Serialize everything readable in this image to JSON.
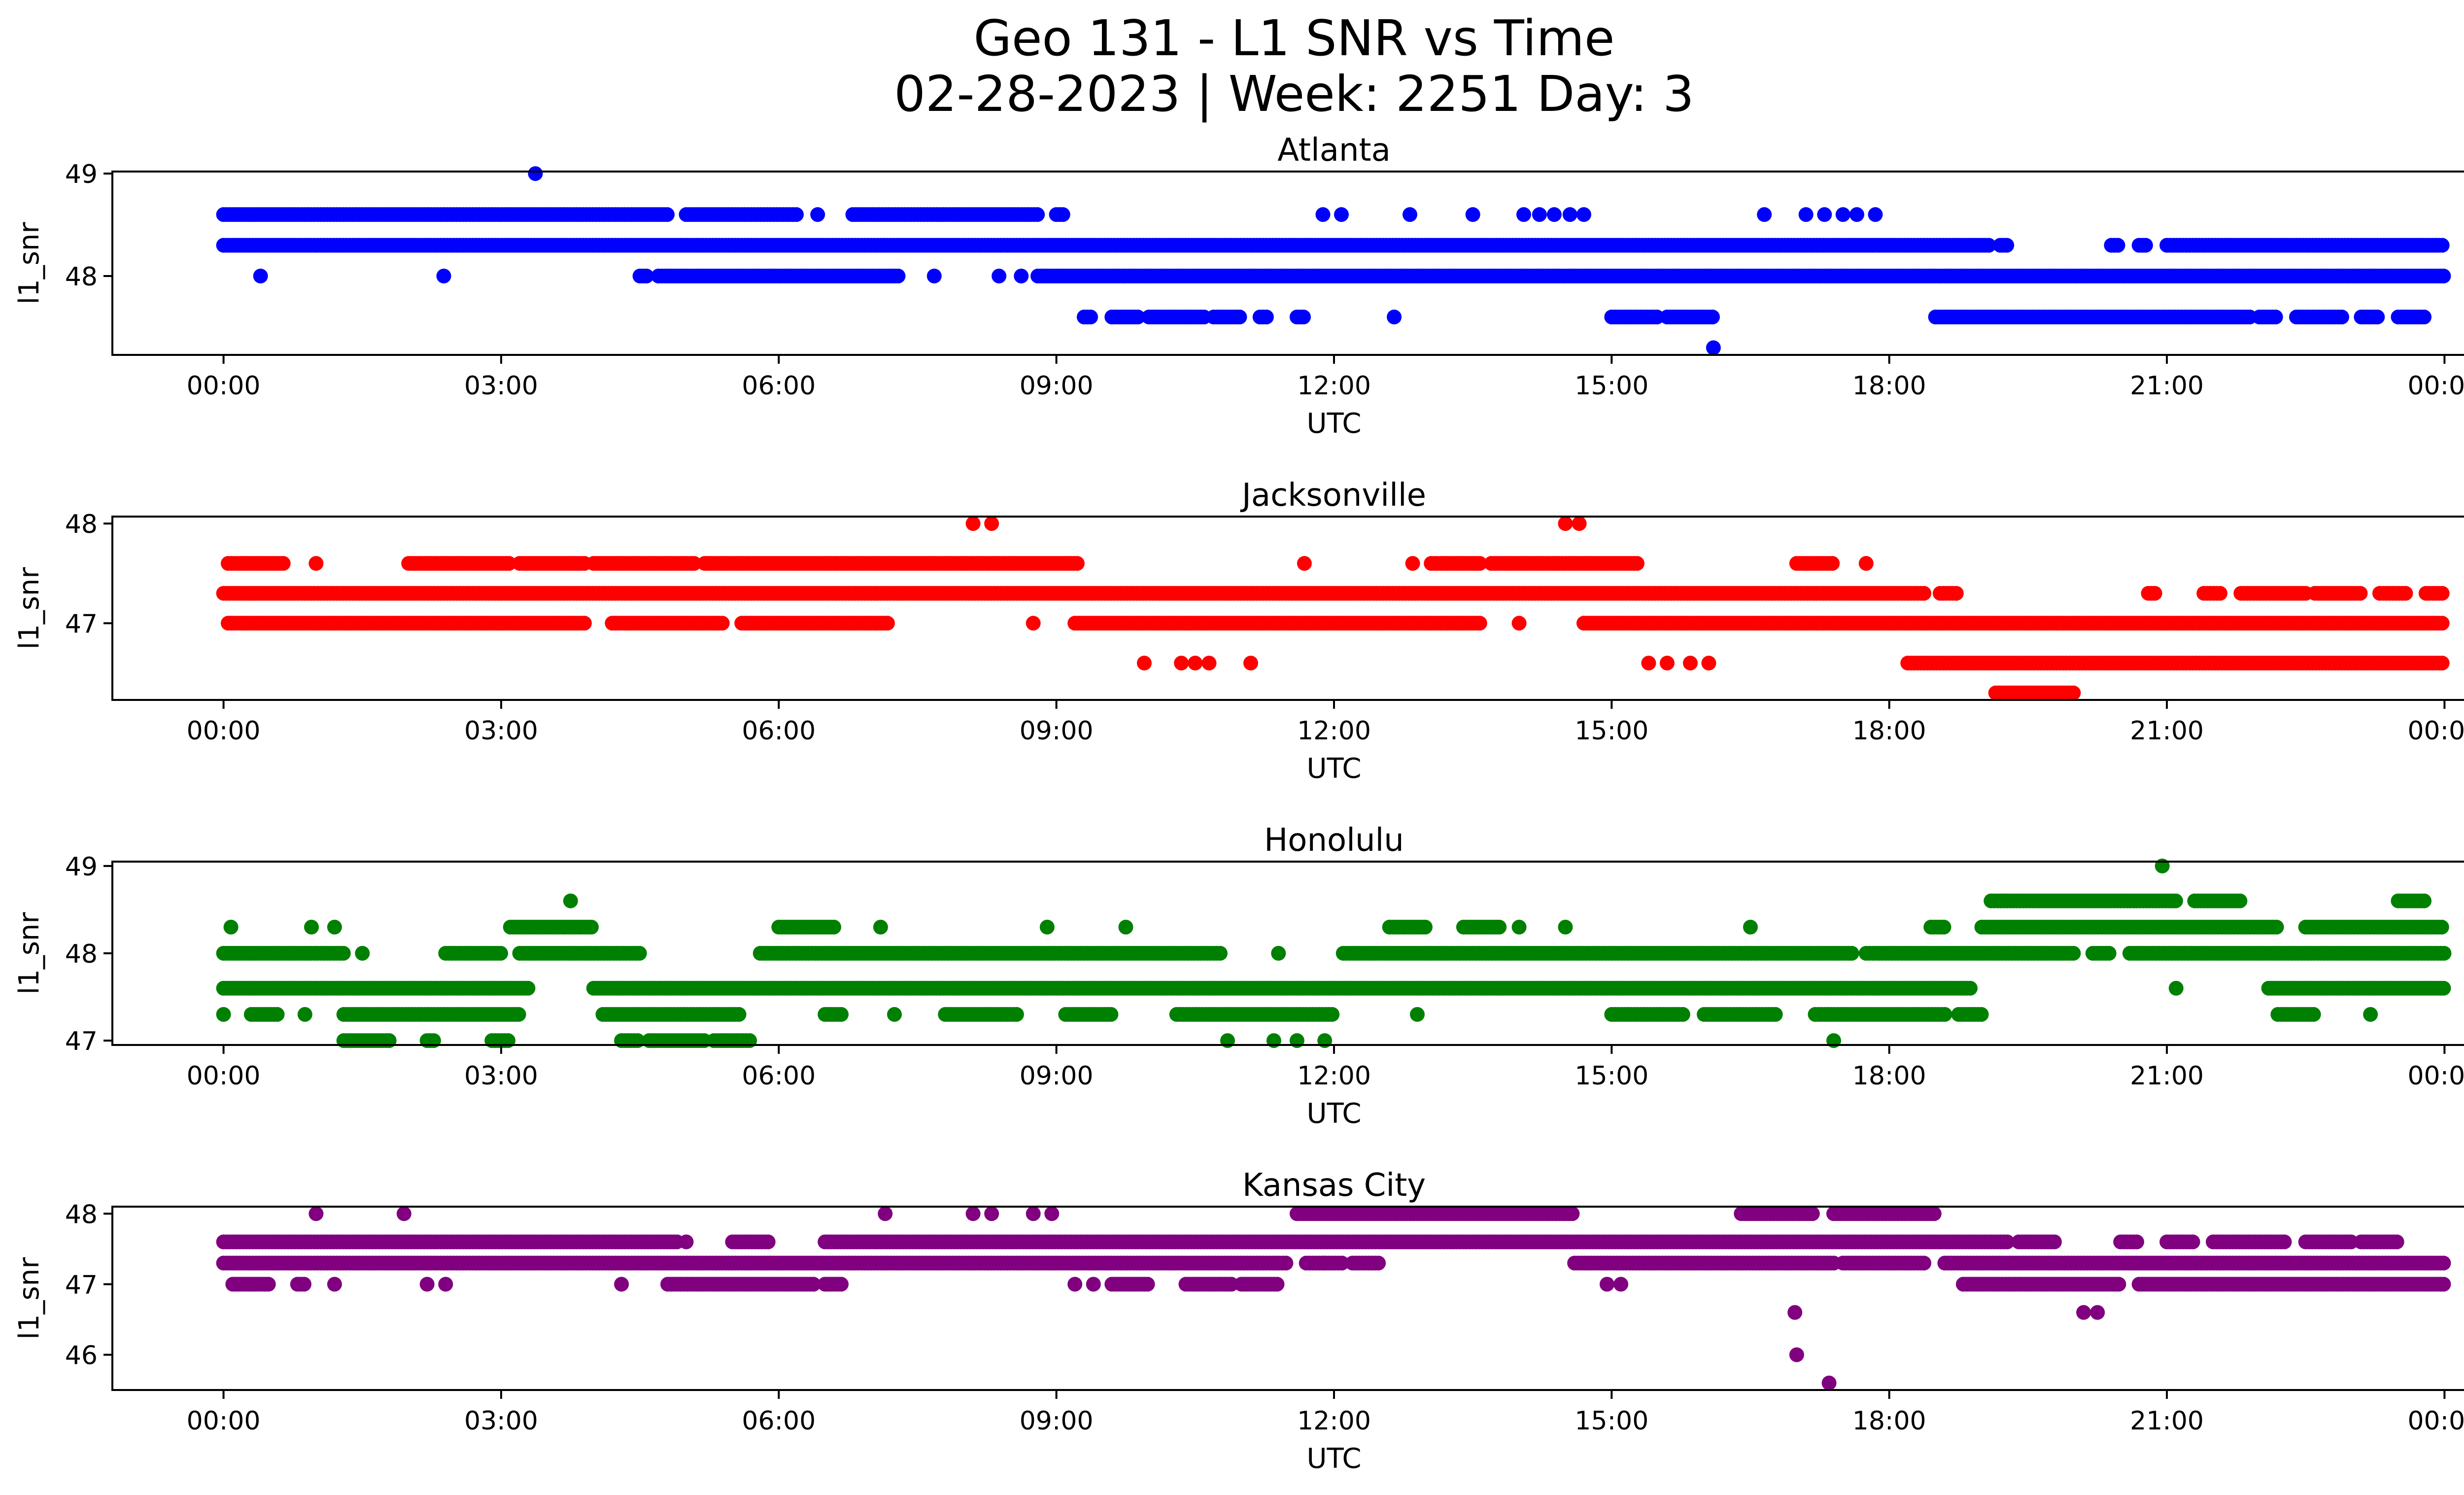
{
  "title_line1": "Geo 131 - L1 SNR vs Time",
  "title_line2": "02-28-2023 | Week: 2251 Day: 3",
  "chart_data": [
    {
      "type": "scatter",
      "title": "Atlanta",
      "color": "#0000ff",
      "xlabel": "UTC",
      "ylabel": "l1_snr",
      "xlim": [
        0,
        24
      ],
      "ylim": [
        47.23,
        49.02
      ],
      "xticks": [
        "00:00",
        "03:00",
        "06:00",
        "09:00",
        "12:00",
        "15:00",
        "18:00",
        "21:00",
        "00:00"
      ],
      "yticks": [
        "48",
        "49"
      ],
      "ytick_values": [
        48,
        49
      ],
      "bands": [
        {
          "y": 48.6,
          "segments": [
            [
              0,
              4.8
            ],
            [
              5.0,
              6.2
            ],
            [
              6.8,
              8.8
            ],
            [
              9.0,
              9.1
            ]
          ]
        },
        {
          "y": 48.3,
          "segments": [
            [
              0,
              19.1
            ],
            [
              19.2,
              19.3
            ],
            [
              20.4,
              20.5
            ],
            [
              20.7,
              20.8
            ],
            [
              21.0,
              24
            ]
          ]
        },
        {
          "y": 48.0,
          "segments": [
            [
              4.5,
              4.6
            ],
            [
              4.7,
              7.3
            ],
            [
              8.8,
              24
            ]
          ]
        },
        {
          "y": 47.6,
          "segments": [
            [
              9.3,
              9.4
            ],
            [
              9.6,
              9.9
            ],
            [
              10.0,
              10.6
            ],
            [
              10.7,
              11.0
            ],
            [
              11.2,
              11.3
            ],
            [
              11.6,
              11.7
            ],
            [
              15.0,
              15.5
            ],
            [
              15.6,
              16.1
            ],
            [
              18.5,
              21.9
            ],
            [
              22.0,
              22.2
            ],
            [
              22.4,
              22.9
            ],
            [
              23.1,
              23.3
            ],
            [
              23.5,
              23.8
            ]
          ]
        }
      ],
      "points": [
        {
          "x": 3.37,
          "y": 49.0
        },
        {
          "x": 0.4,
          "y": 48.0
        },
        {
          "x": 2.38,
          "y": 48.0
        },
        {
          "x": 7.68,
          "y": 48.0
        },
        {
          "x": 8.38,
          "y": 48.0
        },
        {
          "x": 8.62,
          "y": 48.0
        },
        {
          "x": 6.42,
          "y": 48.6
        },
        {
          "x": 11.88,
          "y": 48.6
        },
        {
          "x": 12.08,
          "y": 48.6
        },
        {
          "x": 12.82,
          "y": 48.6
        },
        {
          "x": 13.5,
          "y": 48.6
        },
        {
          "x": 14.05,
          "y": 48.6
        },
        {
          "x": 14.22,
          "y": 48.6
        },
        {
          "x": 14.38,
          "y": 48.6
        },
        {
          "x": 14.55,
          "y": 48.6
        },
        {
          "x": 14.7,
          "y": 48.6
        },
        {
          "x": 16.65,
          "y": 48.6
        },
        {
          "x": 17.1,
          "y": 48.6
        },
        {
          "x": 17.3,
          "y": 48.6
        },
        {
          "x": 17.5,
          "y": 48.6
        },
        {
          "x": 17.65,
          "y": 48.6
        },
        {
          "x": 17.85,
          "y": 48.6
        },
        {
          "x": 12.65,
          "y": 47.6
        },
        {
          "x": 16.1,
          "y": 47.3
        }
      ]
    },
    {
      "type": "scatter",
      "title": "Jacksonville",
      "color": "#ff0000",
      "xlabel": "UTC",
      "ylabel": "l1_snr",
      "xlim": [
        0,
        24
      ],
      "ylim": [
        46.23,
        48.07
      ],
      "xticks": [
        "00:00",
        "03:00",
        "06:00",
        "09:00",
        "12:00",
        "15:00",
        "18:00",
        "21:00",
        "00:00"
      ],
      "yticks": [
        "47",
        "48"
      ],
      "ytick_values": [
        47,
        48
      ],
      "bands": [
        {
          "y": 47.6,
          "segments": [
            [
              0.05,
              0.65
            ],
            [
              2.0,
              3.1
            ],
            [
              3.2,
              3.9
            ],
            [
              4.0,
              5.1
            ],
            [
              5.2,
              9.25
            ],
            [
              13.05,
              13.6
            ],
            [
              13.7,
              15.3
            ],
            [
              17.0,
              17.4
            ]
          ]
        },
        {
          "y": 47.3,
          "segments": [
            [
              0,
              18.4
            ],
            [
              18.55,
              18.75
            ],
            [
              20.8,
              20.9
            ],
            [
              21.4,
              21.6
            ],
            [
              21.8,
              22.5
            ],
            [
              22.6,
              23.1
            ],
            [
              23.3,
              23.6
            ],
            [
              23.8,
              24
            ]
          ]
        },
        {
          "y": 47.0,
          "segments": [
            [
              0.05,
              3.9
            ],
            [
              4.2,
              5.4
            ],
            [
              5.6,
              7.2
            ],
            [
              9.2,
              13.6
            ],
            [
              14.7,
              24
            ]
          ]
        },
        {
          "y": 46.6,
          "segments": [
            [
              18.2,
              24
            ]
          ]
        },
        {
          "y": 46.3,
          "segments": [
            [
              19.15,
              20.0
            ]
          ]
        }
      ],
      "points": [
        {
          "x": 1.0,
          "y": 47.6
        },
        {
          "x": 11.68,
          "y": 47.6
        },
        {
          "x": 12.85,
          "y": 47.6
        },
        {
          "x": 17.75,
          "y": 47.6
        },
        {
          "x": 8.1,
          "y": 48.0
        },
        {
          "x": 8.3,
          "y": 48.0
        },
        {
          "x": 14.5,
          "y": 48.0
        },
        {
          "x": 14.65,
          "y": 48.0
        },
        {
          "x": 8.75,
          "y": 47.0
        },
        {
          "x": 14.0,
          "y": 47.0
        },
        {
          "x": 9.95,
          "y": 46.6
        },
        {
          "x": 10.35,
          "y": 46.6
        },
        {
          "x": 10.5,
          "y": 46.6
        },
        {
          "x": 10.65,
          "y": 46.6
        },
        {
          "x": 11.1,
          "y": 46.6
        },
        {
          "x": 15.4,
          "y": 46.6
        },
        {
          "x": 15.6,
          "y": 46.6
        },
        {
          "x": 15.85,
          "y": 46.6
        },
        {
          "x": 16.05,
          "y": 46.6
        }
      ]
    },
    {
      "type": "scatter",
      "title": "Honolulu",
      "color": "#008000",
      "xlabel": "UTC",
      "ylabel": "l1_snr",
      "xlim": [
        0,
        24
      ],
      "ylim": [
        46.95,
        49.05
      ],
      "xticks": [
        "00:00",
        "03:00",
        "06:00",
        "09:00",
        "12:00",
        "15:00",
        "18:00",
        "21:00",
        "00:00"
      ],
      "yticks": [
        "47",
        "48",
        "49"
      ],
      "ytick_values": [
        47,
        48,
        49
      ],
      "bands": [
        {
          "y": 48.6,
          "segments": [
            [
              19.1,
              21.1
            ],
            [
              21.3,
              21.8
            ],
            [
              23.5,
              23.8
            ]
          ]
        },
        {
          "y": 48.3,
          "segments": [
            [
              3.1,
              4.0
            ],
            [
              6.0,
              6.6
            ],
            [
              12.6,
              13.0
            ],
            [
              13.4,
              13.8
            ],
            [
              18.45,
              18.6
            ],
            [
              19.0,
              22.2
            ],
            [
              22.5,
              24
            ]
          ]
        },
        {
          "y": 48.0,
          "segments": [
            [
              0.0,
              1.3
            ],
            [
              2.4,
              3.0
            ],
            [
              3.2,
              4.5
            ],
            [
              5.8,
              10.8
            ],
            [
              12.1,
              17.6
            ],
            [
              17.75,
              20.0
            ],
            [
              20.2,
              20.4
            ],
            [
              20.6,
              24
            ]
          ]
        },
        {
          "y": 47.6,
          "segments": [
            [
              0,
              3.3
            ],
            [
              4.0,
              18.9
            ],
            [
              22.1,
              24
            ]
          ]
        },
        {
          "y": 47.3,
          "segments": [
            [
              0.3,
              0.6
            ],
            [
              1.3,
              3.2
            ],
            [
              4.1,
              5.6
            ],
            [
              6.5,
              6.7
            ],
            [
              7.8,
              8.6
            ],
            [
              9.1,
              9.6
            ],
            [
              10.3,
              12.0
            ],
            [
              15.0,
              15.8
            ],
            [
              16.0,
              16.8
            ],
            [
              17.2,
              18.6
            ],
            [
              18.75,
              19.0
            ],
            [
              22.2,
              22.6
            ]
          ]
        },
        {
          "y": 47.0,
          "segments": [
            [
              1.3,
              1.8
            ],
            [
              2.2,
              2.3
            ],
            [
              2.9,
              3.1
            ],
            [
              4.3,
              4.5
            ],
            [
              4.6,
              5.2
            ],
            [
              5.3,
              5.7
            ]
          ]
        }
      ],
      "points": [
        {
          "x": 0.08,
          "y": 48.3
        },
        {
          "x": 0.95,
          "y": 48.3
        },
        {
          "x": 1.2,
          "y": 48.3
        },
        {
          "x": 3.75,
          "y": 48.6
        },
        {
          "x": 8.9,
          "y": 48.3
        },
        {
          "x": 9.75,
          "y": 48.3
        },
        {
          "x": 7.1,
          "y": 48.3
        },
        {
          "x": 14.0,
          "y": 48.3
        },
        {
          "x": 14.5,
          "y": 48.3
        },
        {
          "x": 16.5,
          "y": 48.3
        },
        {
          "x": 20.95,
          "y": 49.0
        },
        {
          "x": 0.0,
          "y": 47.3
        },
        {
          "x": 0.88,
          "y": 47.3
        },
        {
          "x": 7.25,
          "y": 47.3
        },
        {
          "x": 12.9,
          "y": 47.3
        },
        {
          "x": 23.2,
          "y": 47.3
        },
        {
          "x": 10.85,
          "y": 47.0
        },
        {
          "x": 11.35,
          "y": 47.0
        },
        {
          "x": 11.6,
          "y": 47.0
        },
        {
          "x": 11.9,
          "y": 47.0
        },
        {
          "x": 17.4,
          "y": 47.0
        },
        {
          "x": 21.1,
          "y": 47.6
        },
        {
          "x": 1.5,
          "y": 48.0
        },
        {
          "x": 11.4,
          "y": 48.0
        }
      ]
    },
    {
      "type": "scatter",
      "title": "Kansas City",
      "color": "#800080",
      "xlabel": "UTC",
      "ylabel": "l1_snr",
      "xlim": [
        0,
        24
      ],
      "ylim": [
        45.5,
        48.1
      ],
      "xticks": [
        "00:00",
        "03:00",
        "06:00",
        "09:00",
        "12:00",
        "15:00",
        "18:00",
        "21:00",
        "00:00"
      ],
      "yticks": [
        "46",
        "47",
        "48"
      ],
      "ytick_values": [
        46,
        47,
        48
      ],
      "bands": [
        {
          "y": 48.0,
          "segments": [
            [
              11.6,
              14.6
            ],
            [
              16.4,
              17.2
            ],
            [
              17.4,
              18.5
            ]
          ]
        },
        {
          "y": 47.6,
          "segments": [
            [
              0,
              4.9
            ],
            [
              5.5,
              5.9
            ],
            [
              6.5,
              19.3
            ],
            [
              19.4,
              19.8
            ],
            [
              20.5,
              20.7
            ],
            [
              21.0,
              21.3
            ],
            [
              21.5,
              22.3
            ],
            [
              22.5,
              23.0
            ],
            [
              23.1,
              23.5
            ]
          ]
        },
        {
          "y": 47.3,
          "segments": [
            [
              0,
              11.5
            ],
            [
              11.7,
              12.1
            ],
            [
              12.2,
              12.5
            ],
            [
              14.6,
              17.4
            ],
            [
              17.5,
              18.4
            ],
            [
              18.6,
              24
            ]
          ]
        },
        {
          "y": 47.0,
          "segments": [
            [
              0.1,
              0.5
            ],
            [
              0.8,
              0.9
            ],
            [
              4.8,
              6.4
            ],
            [
              6.5,
              6.7
            ],
            [
              9.6,
              10.0
            ],
            [
              10.4,
              10.9
            ],
            [
              11.0,
              11.4
            ],
            [
              18.8,
              20.5
            ],
            [
              20.7,
              24
            ]
          ]
        }
      ],
      "points": [
        {
          "x": 1.0,
          "y": 48.0
        },
        {
          "x": 1.95,
          "y": 48.0
        },
        {
          "x": 7.15,
          "y": 48.0
        },
        {
          "x": 8.1,
          "y": 48.0
        },
        {
          "x": 8.3,
          "y": 48.0
        },
        {
          "x": 8.75,
          "y": 48.0
        },
        {
          "x": 8.95,
          "y": 48.0
        },
        {
          "x": 1.2,
          "y": 47.0
        },
        {
          "x": 2.2,
          "y": 47.0
        },
        {
          "x": 2.4,
          "y": 47.0
        },
        {
          "x": 4.3,
          "y": 47.0
        },
        {
          "x": 9.2,
          "y": 47.0
        },
        {
          "x": 9.4,
          "y": 47.0
        },
        {
          "x": 14.95,
          "y": 47.0
        },
        {
          "x": 15.1,
          "y": 47.0
        },
        {
          "x": 16.98,
          "y": 46.6
        },
        {
          "x": 17.0,
          "y": 46.0
        },
        {
          "x": 17.35,
          "y": 45.6
        },
        {
          "x": 20.1,
          "y": 46.6
        },
        {
          "x": 20.25,
          "y": 46.6
        },
        {
          "x": 5.0,
          "y": 47.6
        },
        {
          "x": 11.9,
          "y": 47.3
        }
      ]
    }
  ]
}
